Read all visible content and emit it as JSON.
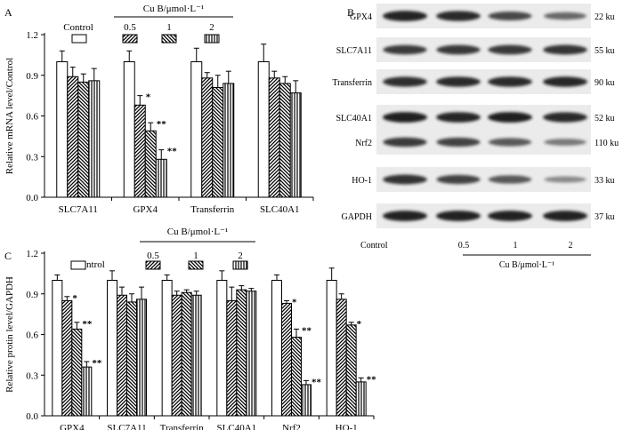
{
  "figure": {
    "panel_labels": [
      "A",
      "B",
      "C"
    ]
  },
  "colors": {
    "axis": "#000000",
    "bar_fill": "#ffffff",
    "blot_background": "#ebebeb",
    "band": "#1c1c1c"
  },
  "chart_data": [
    {
      "panel": "A",
      "type": "bar",
      "title": "",
      "ylabel": "Relative mRNA level/Control",
      "xlabel": "",
      "ylim": [
        0,
        1.2
      ],
      "yticks": [
        "0.0",
        "0.3",
        "0.6",
        "0.9",
        "1.2"
      ],
      "categories": [
        "SLC7A11",
        "GPX4",
        "Transferrin",
        "SLC40A1"
      ],
      "legend": {
        "control_label": "Control",
        "group_title": "Cu B/μmol·L⁻¹",
        "dose_labels": [
          "0.5",
          "1",
          "2"
        ]
      },
      "series": [
        {
          "name": "Control",
          "pattern": "open",
          "values": [
            1.0,
            1.0,
            1.0,
            1.0
          ],
          "errors": [
            0.08,
            0.08,
            0.1,
            0.13
          ]
        },
        {
          "name": "0.5",
          "pattern": "diagonal-down",
          "values": [
            0.89,
            0.68,
            0.88,
            0.88
          ],
          "errors": [
            0.07,
            0.07,
            0.04,
            0.05
          ]
        },
        {
          "name": "1",
          "pattern": "diagonal-up",
          "values": [
            0.85,
            0.49,
            0.81,
            0.84
          ],
          "errors": [
            0.06,
            0.06,
            0.09,
            0.05
          ]
        },
        {
          "name": "2",
          "pattern": "vertical",
          "values": [
            0.86,
            0.28,
            0.84,
            0.77
          ],
          "errors": [
            0.09,
            0.07,
            0.09,
            0.09
          ]
        }
      ],
      "significance": [
        {
          "category": "GPX4",
          "series": "0.5",
          "label": "*"
        },
        {
          "category": "GPX4",
          "series": "1",
          "label": "**"
        },
        {
          "category": "GPX4",
          "series": "2",
          "label": "**"
        }
      ]
    },
    {
      "panel": "C",
      "type": "bar",
      "title": "",
      "ylabel": "Relative protin level/GAPDH",
      "xlabel": "",
      "ylim": [
        0,
        1.2
      ],
      "yticks": [
        "0.0",
        "0.3",
        "0.6",
        "0.9",
        "1.2"
      ],
      "categories": [
        "GPX4",
        "SLC7A11",
        "Transferrin",
        "SLC40A1",
        "Nrf2",
        "HO-1"
      ],
      "legend": {
        "control_label": "Control",
        "group_title": "Cu B/μmol·L⁻¹",
        "dose_labels": [
          "0.5",
          "1",
          "2"
        ]
      },
      "series": [
        {
          "name": "Control",
          "pattern": "open",
          "values": [
            1.0,
            1.0,
            1.0,
            1.0,
            1.0,
            1.0
          ],
          "errors": [
            0.04,
            0.07,
            0.04,
            0.07,
            0.04,
            0.09
          ]
        },
        {
          "name": "0.5",
          "pattern": "diagonal-down",
          "values": [
            0.85,
            0.89,
            0.89,
            0.85,
            0.83,
            0.86
          ],
          "errors": [
            0.03,
            0.06,
            0.03,
            0.1,
            0.02,
            0.04
          ]
        },
        {
          "name": "1",
          "pattern": "diagonal-up",
          "values": [
            0.64,
            0.84,
            0.91,
            0.93,
            0.58,
            0.67
          ],
          "errors": [
            0.05,
            0.06,
            0.02,
            0.03,
            0.06,
            0.02
          ]
        },
        {
          "name": "2",
          "pattern": "vertical",
          "values": [
            0.36,
            0.86,
            0.89,
            0.92,
            0.23,
            0.25
          ],
          "errors": [
            0.04,
            0.09,
            0.03,
            0.02,
            0.03,
            0.03
          ]
        }
      ],
      "significance": [
        {
          "category": "GPX4",
          "series": "0.5",
          "label": "*"
        },
        {
          "category": "GPX4",
          "series": "1",
          "label": "**"
        },
        {
          "category": "GPX4",
          "series": "2",
          "label": "**"
        },
        {
          "category": "Nrf2",
          "series": "0.5",
          "label": "*"
        },
        {
          "category": "Nrf2",
          "series": "1",
          "label": "**"
        },
        {
          "category": "Nrf2",
          "series": "2",
          "label": "**"
        },
        {
          "category": "HO-1",
          "series": "1",
          "label": "*"
        },
        {
          "category": "HO-1",
          "series": "2",
          "label": "**"
        }
      ]
    }
  ],
  "western_blot": {
    "panel": "B",
    "proteins": [
      {
        "name": "GPX4",
        "size": "22 ku",
        "intensity": [
          0.95,
          0.9,
          0.72,
          0.5
        ]
      },
      {
        "name": "SLC7A11",
        "size": "55 ku",
        "intensity": [
          0.8,
          0.82,
          0.82,
          0.84
        ]
      },
      {
        "name": "Transferrin",
        "size": "90 ku",
        "intensity": [
          0.88,
          0.9,
          0.9,
          0.92
        ]
      },
      {
        "name": "SLC40A1",
        "size": "52 ku",
        "intensity": [
          0.97,
          0.94,
          0.97,
          0.9
        ]
      },
      {
        "name": "Nrf2",
        "size": "110 ku",
        "intensity": [
          0.8,
          0.75,
          0.6,
          0.4
        ]
      },
      {
        "name": "HO-1",
        "size": "33 ku",
        "intensity": [
          0.85,
          0.75,
          0.62,
          0.3
        ]
      },
      {
        "name": "GAPDH",
        "size": "37 ku",
        "intensity": [
          0.96,
          0.96,
          0.96,
          0.96
        ]
      }
    ],
    "lane_labels": [
      "Control",
      "0.5",
      "1",
      "2"
    ],
    "xlabel": "Cu B/μmol·L⁻¹"
  }
}
